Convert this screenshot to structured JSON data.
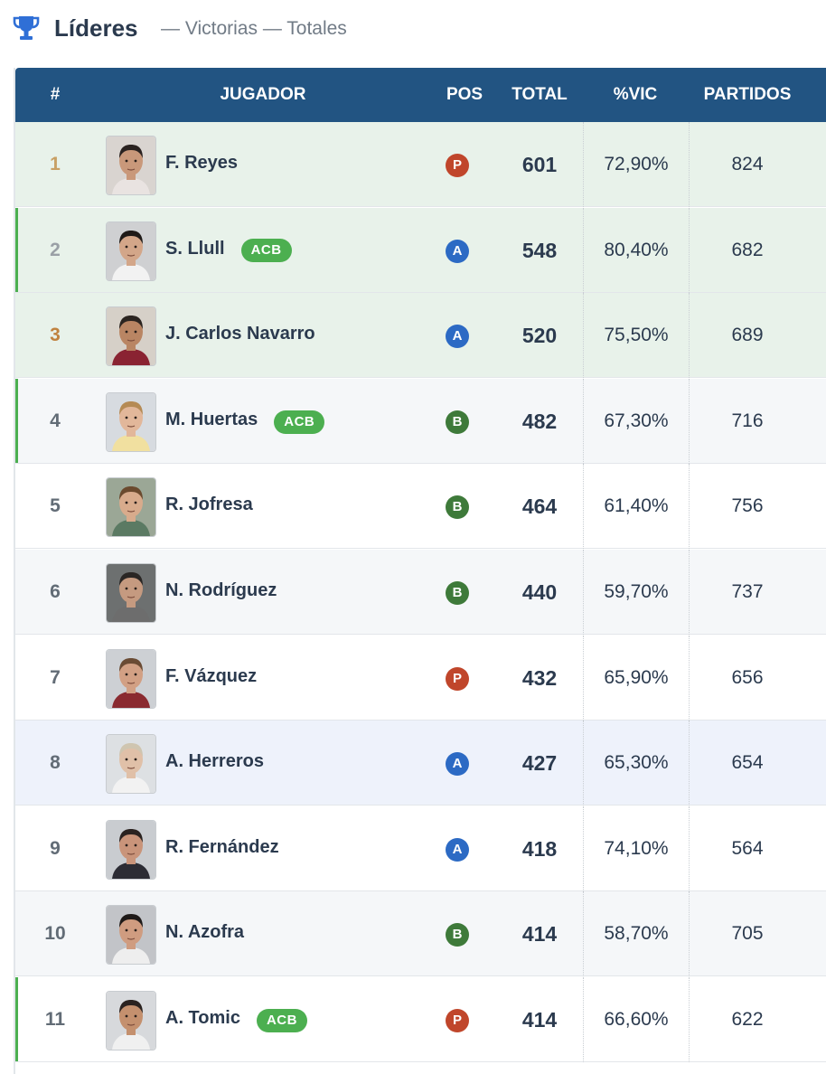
{
  "header": {
    "title": "Líderes",
    "subtitle": "— Victorias — Totales",
    "icon": "trophy-icon"
  },
  "columns": {
    "rank": "#",
    "player": "JUGADOR",
    "pos": "POS",
    "total": "TOTAL",
    "win_pct": "%VIC",
    "games": "PARTIDOS"
  },
  "colors": {
    "header_bg": "#225482",
    "acb_badge": "#4caf50",
    "pos_P": "#c0462b",
    "pos_A": "#2c6ac4",
    "pos_B": "#3e7a3a",
    "rank_gold": "#c8a064",
    "rank_silver": "#9aa0a6",
    "rank_bronze": "#c0823f"
  },
  "rows": [
    {
      "rank": "1",
      "name": "F. Reyes",
      "acb": "",
      "pos": "P",
      "total": "601",
      "win_pct": "72,90%",
      "games": "824"
    },
    {
      "rank": "2",
      "name": "S. Llull",
      "acb": "ACB",
      "pos": "A",
      "total": "548",
      "win_pct": "80,40%",
      "games": "682"
    },
    {
      "rank": "3",
      "name": "J. Carlos Navarro",
      "acb": "",
      "pos": "A",
      "total": "520",
      "win_pct": "75,50%",
      "games": "689"
    },
    {
      "rank": "4",
      "name": "M. Huertas",
      "acb": "ACB",
      "pos": "B",
      "total": "482",
      "win_pct": "67,30%",
      "games": "716"
    },
    {
      "rank": "5",
      "name": "R. Jofresa",
      "acb": "",
      "pos": "B",
      "total": "464",
      "win_pct": "61,40%",
      "games": "756"
    },
    {
      "rank": "6",
      "name": "N. Rodríguez",
      "acb": "",
      "pos": "B",
      "total": "440",
      "win_pct": "59,70%",
      "games": "737"
    },
    {
      "rank": "7",
      "name": "F. Vázquez",
      "acb": "",
      "pos": "P",
      "total": "432",
      "win_pct": "65,90%",
      "games": "656"
    },
    {
      "rank": "8",
      "name": "A. Herreros",
      "acb": "",
      "pos": "A",
      "total": "427",
      "win_pct": "65,30%",
      "games": "654"
    },
    {
      "rank": "9",
      "name": "R. Fernández",
      "acb": "",
      "pos": "A",
      "total": "418",
      "win_pct": "74,10%",
      "games": "564"
    },
    {
      "rank": "10",
      "name": "N. Azofra",
      "acb": "",
      "pos": "B",
      "total": "414",
      "win_pct": "58,70%",
      "games": "705"
    },
    {
      "rank": "11",
      "name": "A. Tomic",
      "acb": "ACB",
      "pos": "P",
      "total": "414",
      "win_pct": "66,60%",
      "games": "622"
    }
  ]
}
